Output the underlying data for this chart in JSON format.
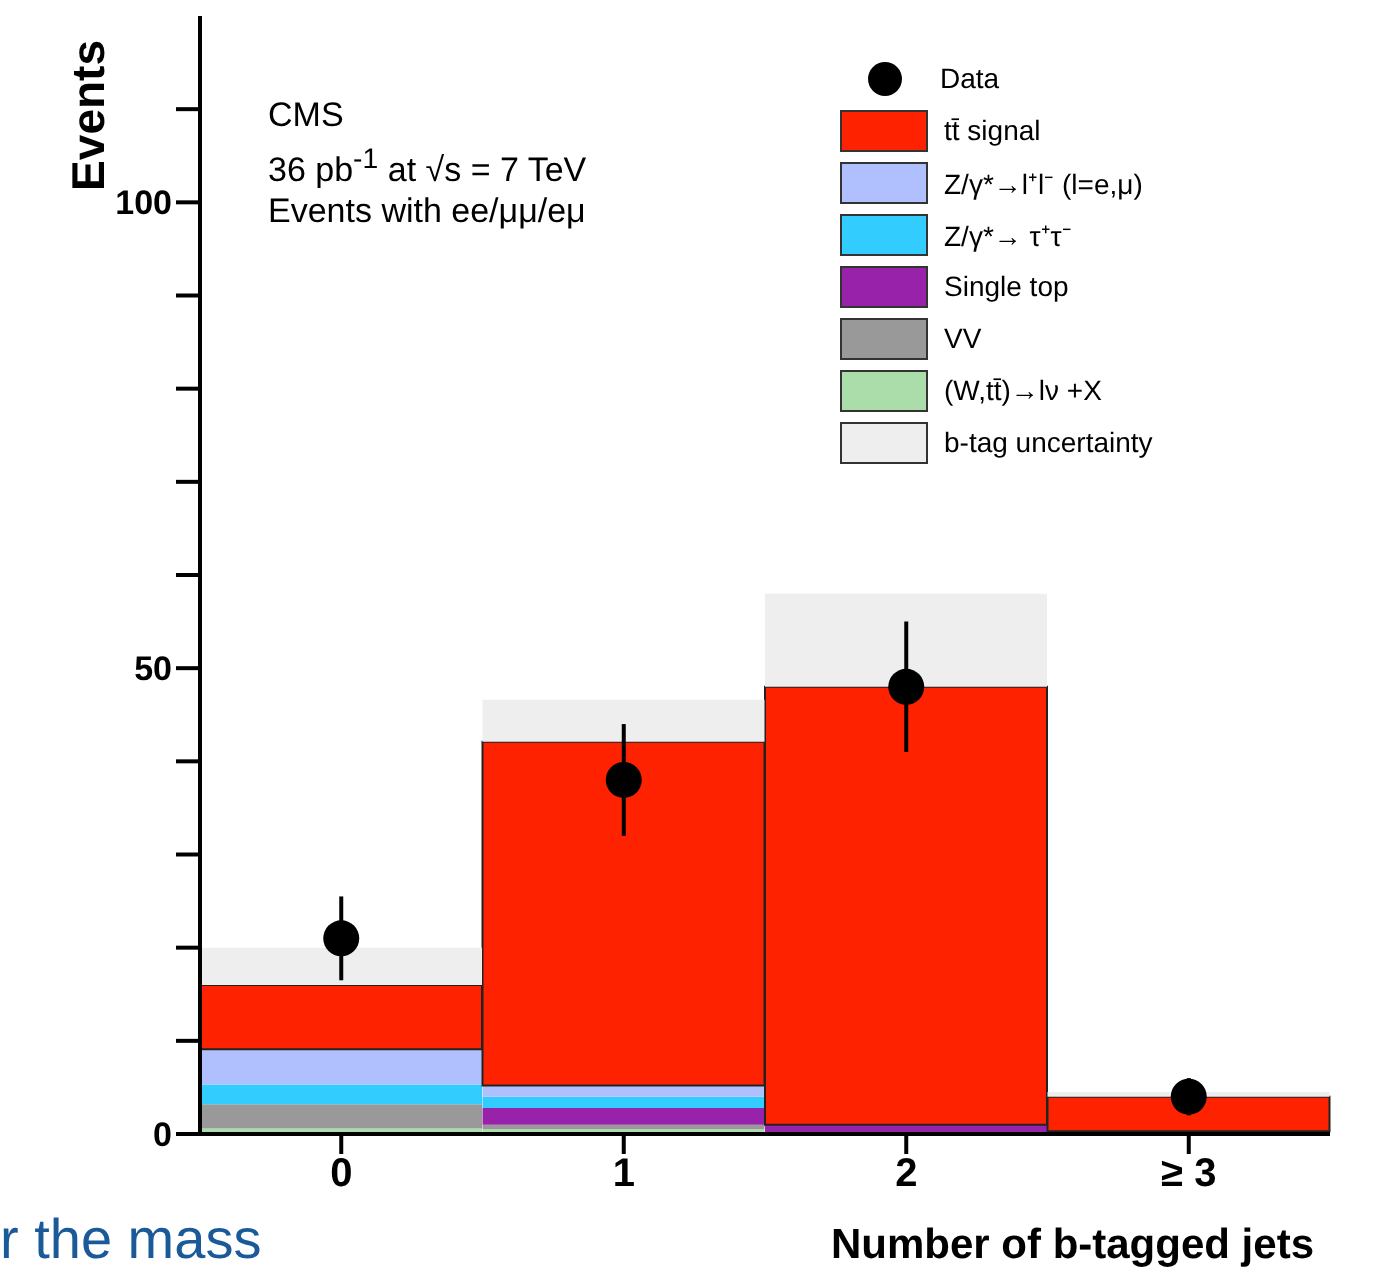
{
  "chart_data": {
    "type": "bar",
    "stacked": true,
    "xlabel": "Number of b-tagged jets",
    "ylabel": "Events",
    "categories": [
      "0",
      "1",
      "2",
      "≥ 3"
    ],
    "ylim": [
      0,
      120
    ],
    "yticks": [
      0,
      {
        "value": 10,
        "label": null
      },
      {
        "value": 20,
        "label": null
      },
      {
        "value": 30,
        "label": null
      },
      {
        "value": 40,
        "label": null
      },
      50,
      {
        "value": 60,
        "label": null
      },
      {
        "value": 70,
        "label": null
      },
      {
        "value": 80,
        "label": null
      },
      {
        "value": 90,
        "label": null
      },
      100,
      {
        "value": 110,
        "label": null
      }
    ],
    "legend": "top right",
    "grid": false,
    "series": [
      {
        "name": "(W,tt̄)→lν +X",
        "color": "#aaddaa",
        "values": [
          0.6,
          0.5,
          null,
          null
        ]
      },
      {
        "name": "VV",
        "color": "#999999",
        "values": [
          2.6,
          0.5,
          null,
          null
        ]
      },
      {
        "name": "Single top",
        "color": "#9922aa",
        "values": [
          0,
          1.8,
          1.0,
          0.3
        ]
      },
      {
        "name": "Z/γ*→ τ⁺τ⁻",
        "color": "#33ccff",
        "values": [
          2.1,
          1.2,
          0,
          0
        ]
      },
      {
        "name": "Z/γ*→l⁺l⁻ (l=e,μ)",
        "color": "#b0c0ff",
        "values": [
          3.8,
          1.2,
          0,
          0
        ]
      },
      {
        "name": "tt̄ signal",
        "color": "#ff2200",
        "values": [
          6.9,
          36.9,
          47.0,
          3.7
        ]
      },
      {
        "name": "b-tag uncertainty",
        "color": "#eeeeee",
        "values": [
          4,
          4.5,
          10,
          0.5
        ]
      },
      {
        "name": "Data",
        "type": "scatter",
        "color": "#000000",
        "marker": "circle",
        "values": [
          21,
          38,
          48,
          4
        ],
        "errors": [
          4.5,
          6,
          7,
          2
        ]
      }
    ],
    "annotations": [
      "CMS",
      "36 pb$^{-1}$ at √s = 7 TeV",
      "Events with ee/μμ/eμ",
      "r the mass"
    ]
  }
}
